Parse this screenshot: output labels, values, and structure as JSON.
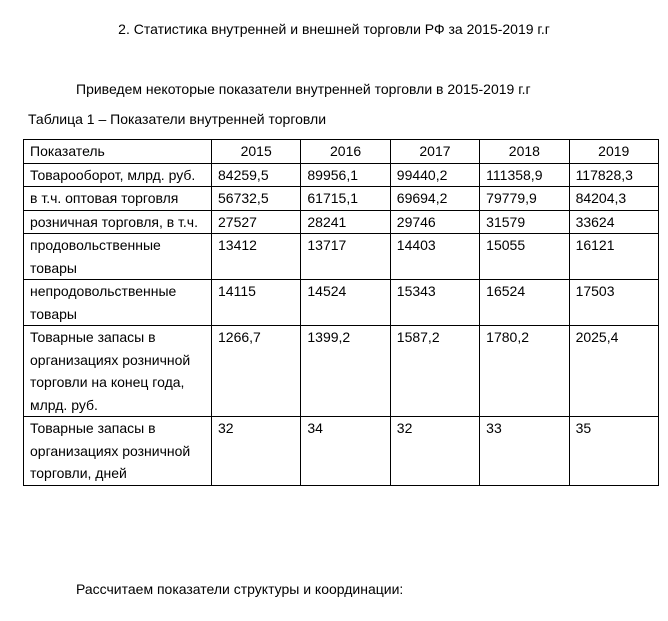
{
  "heading": "2. Статистика внутренней и внешней торговли РФ за 2015-2019 г.г",
  "intro": "Приведем некоторые показатели внутренней торговли в 2015-2019 г.г",
  "caption": "Таблица 1 – Показатели  внутренней торговли",
  "table": {
    "headers": [
      "Показатель",
      "2015",
      "2016",
      "2017",
      "2018",
      "2019"
    ],
    "rows": [
      {
        "label": "Товарооборот, млрд. руб.",
        "values": [
          "84259,5",
          "89956,1",
          "99440,2",
          "111358,9",
          "117828,3"
        ]
      },
      {
        "label": "в т.ч. оптовая торговля",
        "values": [
          "56732,5",
          "61715,1",
          "69694,2",
          "79779,9",
          "84204,3"
        ]
      },
      {
        "label": "розничная торговля, в т.ч.",
        "values": [
          "27527",
          "28241",
          "29746",
          "31579",
          "33624"
        ]
      },
      {
        "label": "продовольственные товары",
        "values": [
          "13412",
          "13717",
          "14403",
          "15055",
          "16121"
        ]
      },
      {
        "label": "непродовольственные товары",
        "values": [
          "14115",
          "14524",
          "15343",
          "16524",
          "17503"
        ]
      },
      {
        "label": "Товарные запасы в организациях розничной торговли на конец года, млрд. руб.",
        "values": [
          "1266,7",
          "1399,2",
          "1587,2",
          "1780,2",
          "2025,4"
        ]
      },
      {
        "label": "Товарные запасы в организациях розничной торговли, дней",
        "values": [
          "32",
          "34",
          "32",
          "33",
          "35"
        ]
      }
    ]
  },
  "footer": "Рассчитаем показатели структуры и координации:"
}
